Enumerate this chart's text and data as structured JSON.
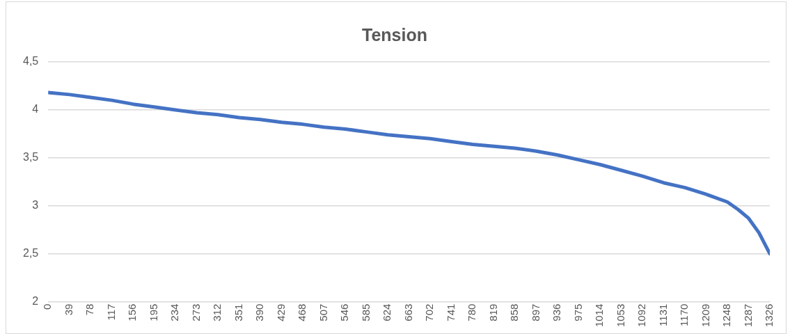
{
  "chart_data": {
    "type": "line",
    "title": "Tension",
    "x": [
      0,
      39,
      78,
      117,
      156,
      195,
      234,
      273,
      312,
      351,
      390,
      429,
      468,
      507,
      546,
      585,
      624,
      663,
      702,
      741,
      780,
      819,
      858,
      897,
      936,
      975,
      1014,
      1053,
      1092,
      1131,
      1170,
      1209,
      1248,
      1268,
      1287,
      1306,
      1326
    ],
    "series": [
      {
        "color": "#4472c4",
        "values": [
          4.18,
          4.16,
          4.13,
          4.1,
          4.06,
          4.03,
          4,
          3.97,
          3.95,
          3.92,
          3.9,
          3.87,
          3.85,
          3.82,
          3.8,
          3.77,
          3.74,
          3.72,
          3.7,
          3.67,
          3.64,
          3.62,
          3.6,
          3.57,
          3.53,
          3.48,
          3.43,
          3.37,
          3.31,
          3.24,
          3.19,
          3.12,
          3.04,
          2.96,
          2.87,
          2.72,
          2.5
        ]
      }
    ],
    "xlim": [
      0,
      1326
    ],
    "xticks": [
      0,
      39,
      78,
      117,
      156,
      195,
      234,
      273,
      312,
      351,
      390,
      429,
      468,
      507,
      546,
      585,
      624,
      663,
      702,
      741,
      780,
      819,
      858,
      897,
      936,
      975,
      1014,
      1053,
      1092,
      1131,
      1170,
      1209,
      1248,
      1287,
      1326
    ],
    "ylim": [
      2,
      4.5
    ],
    "yticks": [
      {
        "value": 2,
        "label": "2"
      },
      {
        "value": 2.5,
        "label": "2,5"
      },
      {
        "value": 3,
        "label": "3"
      },
      {
        "value": 3.5,
        "label": "3,5"
      },
      {
        "value": 4,
        "label": "4"
      },
      {
        "value": 4.5,
        "label": "4,5"
      }
    ],
    "grid": "y",
    "legend": false,
    "marker": "none",
    "line_style": "solid"
  }
}
